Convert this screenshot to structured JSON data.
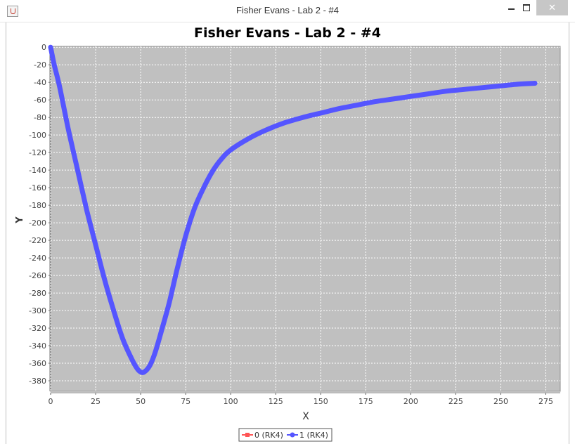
{
  "window": {
    "title": "Fisher Evans - Lab 2 - #4",
    "icon": "java-icon",
    "controls": {
      "minimize": "minimize-icon",
      "maximize": "maximize-icon",
      "close": "close-icon"
    }
  },
  "colors": {
    "plot_background": "#c0c0c0",
    "grid": "#ffffff",
    "series_0": "#ff5555",
    "series_1": "#5555ff"
  },
  "chart_data": {
    "type": "line",
    "title": "Fisher Evans - Lab 2 - #4",
    "xlabel": "X",
    "ylabel": "Y",
    "xlim": [
      0,
      283
    ],
    "ylim": [
      -392,
      1
    ],
    "x_ticks": [
      0,
      25,
      50,
      75,
      100,
      125,
      150,
      175,
      200,
      225,
      250,
      275
    ],
    "y_ticks": [
      0,
      -20,
      -40,
      -60,
      -80,
      -100,
      -120,
      -140,
      -160,
      -180,
      -200,
      -220,
      -240,
      -260,
      -280,
      -300,
      -320,
      -340,
      -360,
      -380
    ],
    "grid": true,
    "legend_position": "bottom",
    "series": [
      {
        "name": "0 (RK4)",
        "marker": "square",
        "x": [],
        "y": []
      },
      {
        "name": "1 (RK4)",
        "marker": "circle",
        "x": [
          0,
          2,
          5,
          10,
          15,
          20,
          25,
          30,
          35,
          40,
          45,
          48,
          50,
          52,
          55,
          58,
          62,
          66,
          70,
          75,
          80,
          85,
          90,
          95,
          100,
          110,
          120,
          130,
          140,
          150,
          160,
          170,
          180,
          190,
          200,
          210,
          220,
          230,
          240,
          250,
          260,
          269
        ],
        "y": [
          0,
          -20,
          -45,
          -95,
          -140,
          -185,
          -225,
          -265,
          -300,
          -332,
          -355,
          -366,
          -370,
          -370,
          -363,
          -348,
          -320,
          -290,
          -255,
          -215,
          -183,
          -160,
          -141,
          -127,
          -117,
          -104,
          -94,
          -86,
          -80,
          -75,
          -70,
          -66,
          -62,
          -59,
          -56,
          -53,
          -50,
          -48,
          -46,
          -44,
          -42,
          -41
        ]
      }
    ]
  }
}
